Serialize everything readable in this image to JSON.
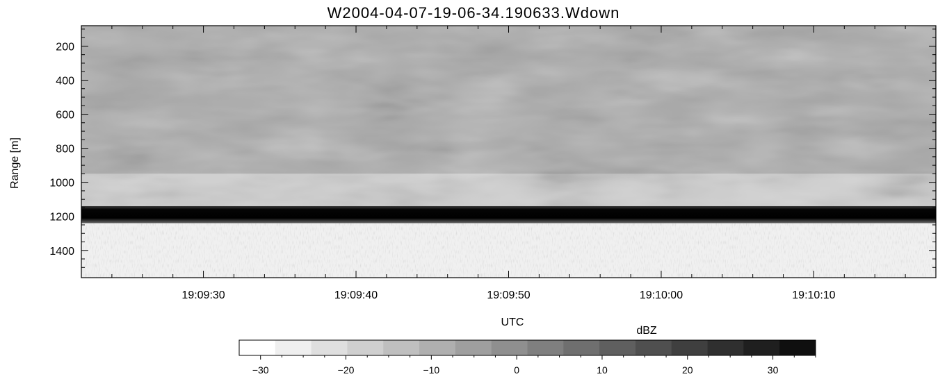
{
  "chart_data": {
    "type": "heatmap",
    "title": "W2004-04-07-19-06-34.190633.Wdown",
    "xlabel": "UTC",
    "ylabel": "Range [m]",
    "x_range": [
      "19:09:22",
      "19:10:18"
    ],
    "x_ticks": [
      "19:09:30",
      "19:09:40",
      "19:09:50",
      "19:10:00",
      "19:10:10"
    ],
    "y_range": [
      80,
      1560
    ],
    "y_inverted": true,
    "y_ticks": [
      200,
      400,
      600,
      800,
      1000,
      1200,
      1400
    ],
    "colorbar": {
      "label": "dBZ",
      "range": [
        -32.5,
        35
      ],
      "ticks": [
        -30,
        -20,
        -10,
        0,
        10,
        20,
        30
      ],
      "colormap": "grayscale white-to-black",
      "levels": [
        "#ffffff",
        "#efefef",
        "#dfdfdf",
        "#cfcfcf",
        "#bfbfbf",
        "#afafaf",
        "#9f9f9f",
        "#8f8f8f",
        "#7f7f7f",
        "#6f6f6f",
        "#5f5f5f",
        "#4f4f4f",
        "#3f3f3f",
        "#2f2f2f",
        "#1f1f1f",
        "#0f0f0f"
      ]
    },
    "layers": [
      {
        "range": [
          80,
          950
        ],
        "dbz": [
          -15,
          -5
        ]
      },
      {
        "range": [
          950,
          1140
        ],
        "dbz": [
          -25,
          -15
        ]
      },
      {
        "range": [
          1140,
          1240
        ],
        "dbz": [
          30,
          35
        ]
      },
      {
        "range": [
          1240,
          1560
        ],
        "dbz": [
          -32,
          -25
        ]
      }
    ]
  }
}
